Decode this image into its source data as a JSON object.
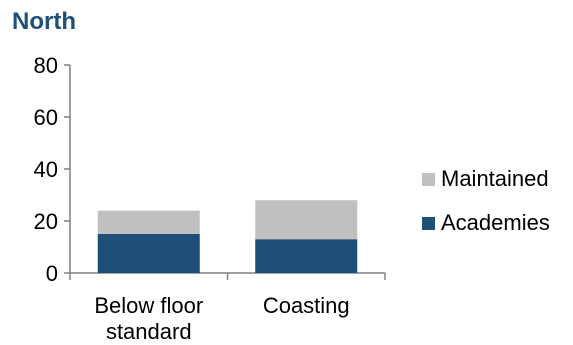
{
  "chart_data": {
    "type": "bar",
    "stacked": true,
    "title": "North",
    "categories": [
      [
        "Below floor",
        "standard"
      ],
      [
        "Coasting"
      ]
    ],
    "series": [
      {
        "name": "Academies",
        "values": [
          15,
          13
        ],
        "color": "#1f4e79"
      },
      {
        "name": "Maintained",
        "values": [
          9,
          15
        ],
        "color": "#c0c0c0"
      }
    ],
    "ylim": [
      0,
      80
    ],
    "yticks": [
      0,
      20,
      40,
      60,
      80
    ],
    "grid": false,
    "legend": "right"
  }
}
